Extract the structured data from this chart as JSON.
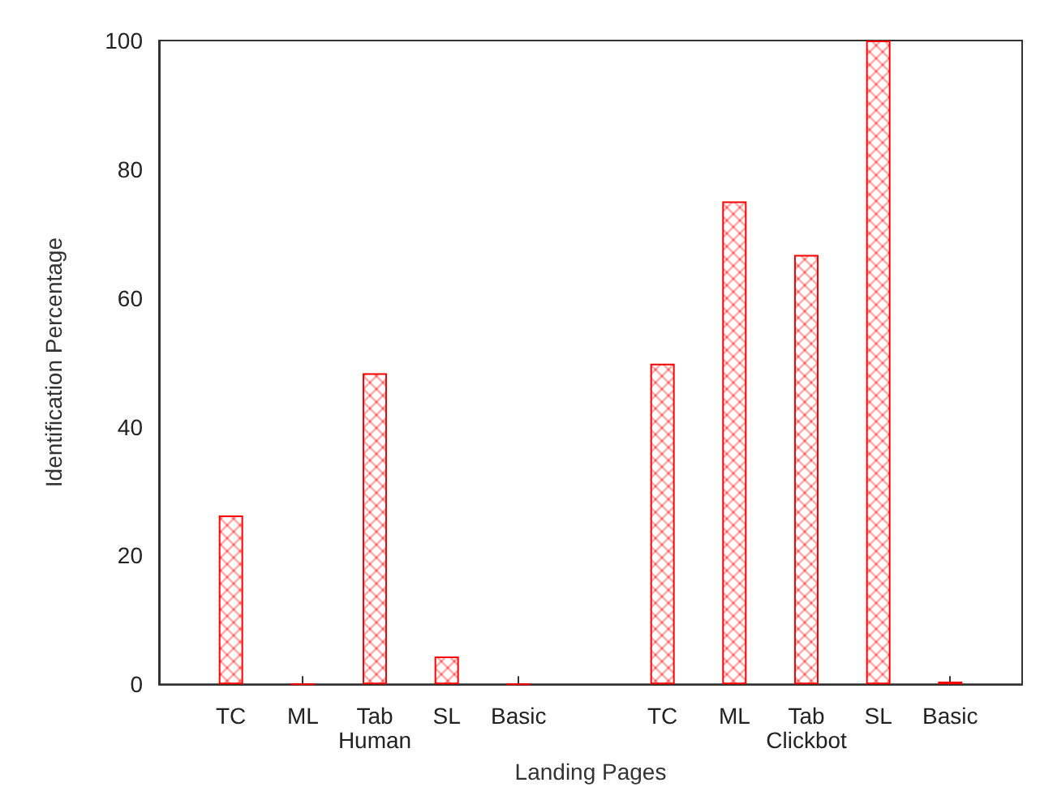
{
  "chart_data": {
    "type": "bar",
    "xlabel": "Landing Pages",
    "ylabel": "Identification Percentage",
    "categories": [
      null,
      "TC",
      "ML",
      "Tab\nHuman",
      "SL",
      "Basic",
      null,
      "TC",
      "ML",
      "Tab\nClickbot",
      "SL",
      "Basic",
      null
    ],
    "values": [
      null,
      26.2,
      0,
      48.3,
      4.3,
      0,
      null,
      49.8,
      75,
      66.7,
      100,
      0.4,
      null
    ],
    "color": "#ff0000",
    "ylim": [
      0,
      100
    ],
    "yticks": [
      0,
      20,
      40,
      60,
      80,
      100
    ],
    "grid": false
  }
}
